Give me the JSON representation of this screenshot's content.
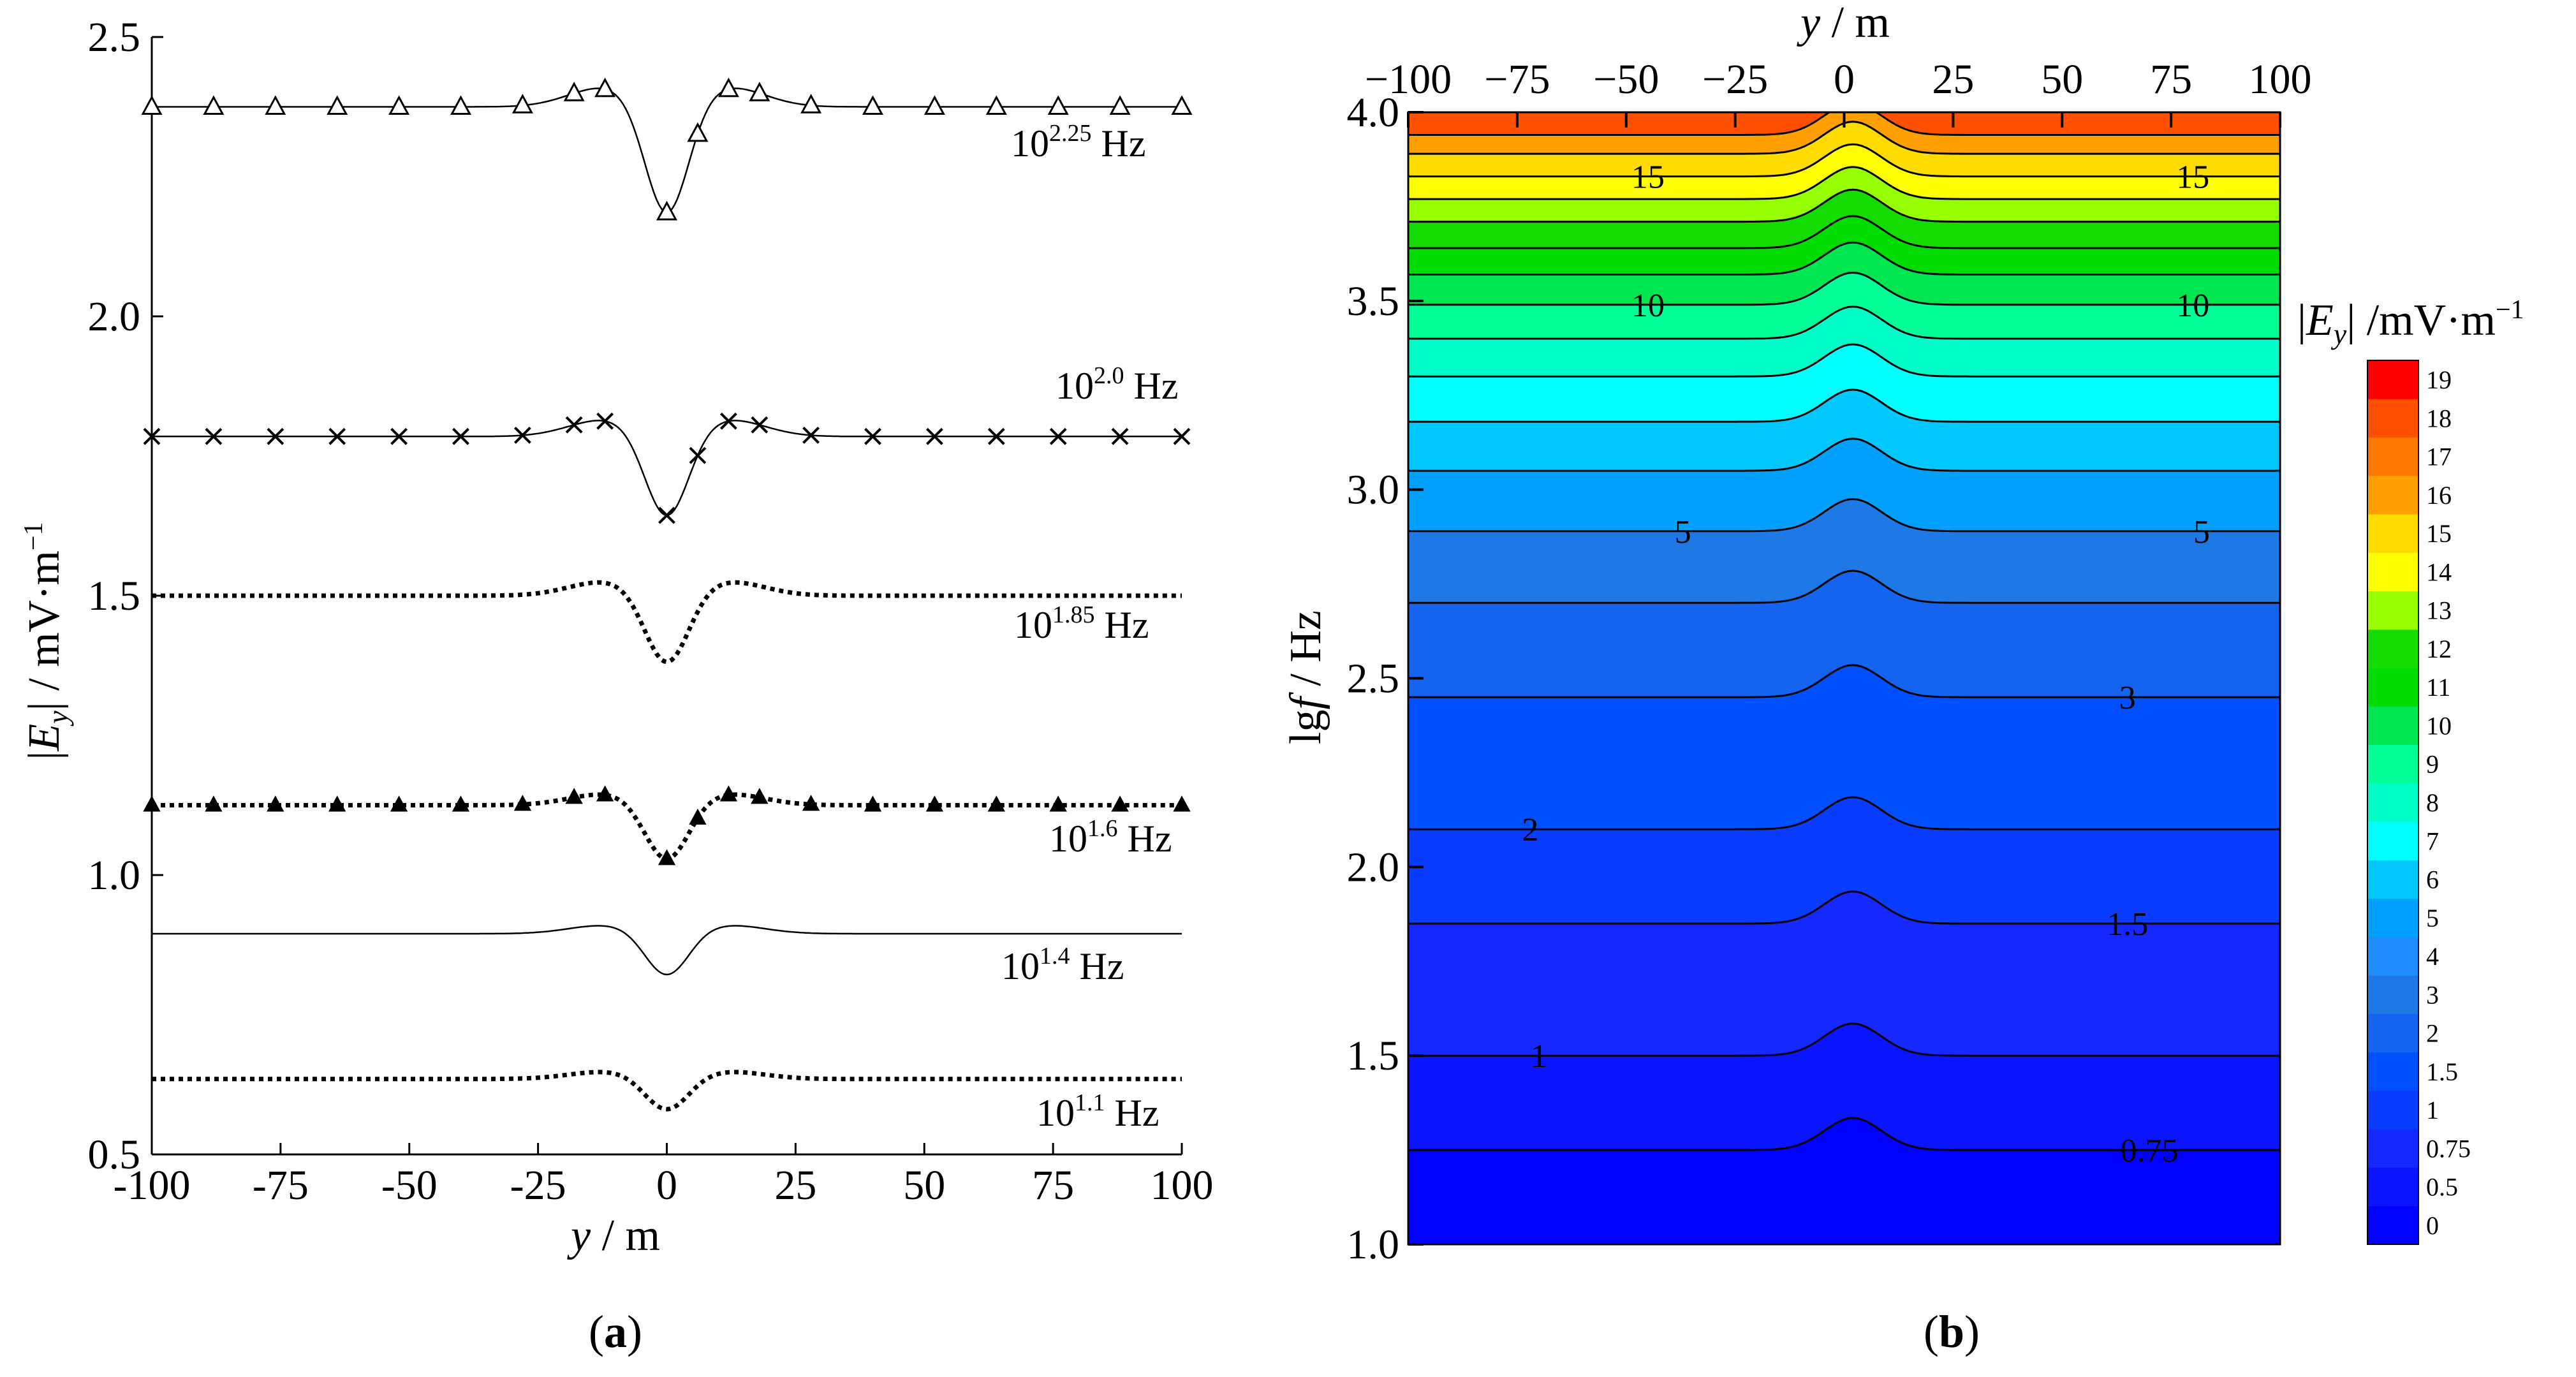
{
  "panel_a": {
    "label_open": "(",
    "label_letter": "a",
    "label_close": ")",
    "ylabel_bar_left": "|",
    "ylabel_E": "E",
    "ylabel_sub": "y",
    "ylabel_rest": "| / mV·m",
    "ylabel_sup": "−1",
    "xlabel_var": "y",
    "xlabel_rest": " / m",
    "series_labels": [
      {
        "base": "10",
        "exp": "2.25",
        "unit": " Hz"
      },
      {
        "base": "10",
        "exp": "2.0",
        "unit": " Hz"
      },
      {
        "base": "10",
        "exp": "1.85",
        "unit": " Hz"
      },
      {
        "base": "10",
        "exp": "1.6",
        "unit": " Hz"
      },
      {
        "base": "10",
        "exp": "1.4",
        "unit": " Hz"
      },
      {
        "base": "10",
        "exp": "1.1",
        "unit": " Hz"
      }
    ]
  },
  "panel_b": {
    "label_open": "(",
    "label_letter": "b",
    "label_close": ")",
    "xlabel_var": "y",
    "xlabel_rest": " / m",
    "ylabel_lg": "lg",
    "ylabel_f": "f",
    "ylabel_rest": " / Hz",
    "cbar_title_bar": "|",
    "cbar_title_E": "E",
    "cbar_title_sub": "y",
    "cbar_title_rest": "| /mV·m",
    "cbar_title_sup": "−1"
  },
  "colors": {
    "line": "#000000",
    "colorbar": [
      "#0000ff",
      "#0a14ff",
      "#1428ff",
      "#0a3cff",
      "#0050ff",
      "#1464f0",
      "#1e78e6",
      "#1e8cff",
      "#00a0ff",
      "#00c8ff",
      "#00ffff",
      "#00ffc8",
      "#00ff96",
      "#00e650",
      "#00dc00",
      "#14dc00",
      "#96ff00",
      "#ffff00",
      "#ffdc00",
      "#ffa000",
      "#ff7800",
      "#ff5000",
      "#ff0000"
    ]
  },
  "chart_data": [
    {
      "type": "line",
      "title": "",
      "xlabel": "y / m",
      "ylabel": "|Ey| / mV·m−1",
      "xlim": [
        -100,
        100
      ],
      "ylim": [
        0.5,
        2.5
      ],
      "x_ticks": [
        -100,
        -75,
        -50,
        -25,
        0,
        25,
        50,
        75,
        100
      ],
      "x_tick_labels": [
        "-100",
        "-75",
        "-50",
        "-25",
        "0",
        "25",
        "50",
        "75",
        "100"
      ],
      "y_ticks": [
        0.5,
        1.0,
        1.5,
        2.0,
        2.5
      ],
      "y_tick_labels": [
        "0.5",
        "1.0",
        "1.5",
        "2.0",
        "2.5"
      ],
      "series": [
        {
          "name": "10^2.25 Hz",
          "style": "solid",
          "marker": "open-triangle",
          "baseline": 2.375,
          "dip_min": 2.17,
          "peak": 2.41,
          "marker_x": [
            -100,
            -88,
            -76,
            -64,
            -52,
            -40,
            -28,
            -18,
            -12,
            0,
            6,
            12,
            18,
            28,
            40,
            52,
            64,
            76,
            88,
            100
          ]
        },
        {
          "name": "10^2.0 Hz",
          "style": "solid",
          "marker": "cross",
          "baseline": 1.785,
          "dip_min": 1.63,
          "peak": 1.815,
          "marker_x": [
            -100,
            -88,
            -76,
            -64,
            -52,
            -40,
            -28,
            -18,
            -12,
            0,
            6,
            12,
            18,
            28,
            40,
            52,
            64,
            76,
            88,
            100
          ]
        },
        {
          "name": "10^1.85 Hz",
          "style": "dotted",
          "marker": "none",
          "baseline": 1.5,
          "dip_min": 1.37,
          "peak": 1.525
        },
        {
          "name": "10^1.6 Hz",
          "style": "dotted",
          "marker": "filled-triangle",
          "baseline": 1.125,
          "dip_min": 1.02,
          "peak": 1.145,
          "marker_x": [
            -100,
            -88,
            -76,
            -64,
            -52,
            -40,
            -28,
            -18,
            -12,
            0,
            6,
            12,
            18,
            28,
            40,
            52,
            64,
            76,
            88,
            100
          ]
        },
        {
          "name": "10^1.4 Hz",
          "style": "solid",
          "marker": "none",
          "baseline": 0.895,
          "dip_min": 0.815,
          "peak": 0.91
        },
        {
          "name": "10^1.1 Hz",
          "style": "dotted",
          "marker": "none",
          "baseline": 0.635,
          "dip_min": 0.575,
          "peak": 0.648
        }
      ]
    },
    {
      "type": "heatmap",
      "title": "",
      "xlabel": "y / m",
      "ylabel": "lg f / Hz",
      "xlim": [
        -100,
        100
      ],
      "ylim": [
        1.0,
        4.0
      ],
      "x_ticks": [
        -100,
        -75,
        -50,
        -25,
        0,
        25,
        50,
        75,
        100
      ],
      "x_tick_labels": [
        "−100",
        "−75",
        "−50",
        "−25",
        "0",
        "25",
        "50",
        "75",
        "100"
      ],
      "y_ticks": [
        1.0,
        1.5,
        2.0,
        2.5,
        3.0,
        3.5,
        4.0
      ],
      "y_tick_labels": [
        "1.0",
        "1.5",
        "2.0",
        "2.5",
        "3.0",
        "3.5",
        "4.0"
      ],
      "colorbar_levels": [
        0,
        0.5,
        0.75,
        1,
        1.5,
        2,
        3,
        4,
        5,
        6,
        7,
        8,
        9,
        10,
        11,
        12,
        13,
        14,
        15,
        16,
        17,
        18,
        19
      ],
      "colorbar_labels": [
        "0",
        "0.5",
        "0.75",
        "1",
        "1.5",
        "2",
        "3",
        "4",
        "5",
        "6",
        "7",
        "8",
        "9",
        "10",
        "11",
        "12",
        "13",
        "14",
        "15",
        "16",
        "17",
        "18",
        "19"
      ],
      "contour_rows": [
        {
          "lgf": 1.25,
          "upper": 1.33,
          "lower": 1.0,
          "level_index": 1
        },
        {
          "lgf": 1.5,
          "upper": 1.575,
          "lower": 1.25,
          "level_index": 2
        },
        {
          "lgf": 1.85,
          "upper": 1.935,
          "lower": 1.5,
          "level_index": 3
        },
        {
          "lgf": 2.1,
          "upper": 2.185,
          "lower": 1.85,
          "level_index": 4
        },
        {
          "lgf": 2.45,
          "upper": 2.535,
          "lower": 2.1,
          "level_index": 5
        },
        {
          "lgf": 2.7,
          "upper": 2.785,
          "lower": 2.45,
          "level_index": 6
        },
        {
          "lgf": 2.89,
          "upper": 2.975,
          "lower": 2.7,
          "level_index": 8
        },
        {
          "lgf": 3.05,
          "upper": 3.135,
          "lower": 2.89,
          "level_index": 9
        },
        {
          "lgf": 3.18,
          "upper": 3.265,
          "lower": 3.05,
          "level_index": 10
        },
        {
          "lgf": 3.3,
          "upper": 3.385,
          "lower": 3.18,
          "level_index": 11
        },
        {
          "lgf": 3.4,
          "upper": 3.485,
          "lower": 3.3,
          "level_index": 12
        },
        {
          "lgf": 3.49,
          "upper": 3.575,
          "lower": 3.4,
          "level_index": 13
        },
        {
          "lgf": 3.57,
          "upper": 3.655,
          "lower": 3.49,
          "level_index": 14
        },
        {
          "lgf": 3.64,
          "upper": 3.725,
          "lower": 3.57,
          "level_index": 15
        },
        {
          "lgf": 3.71,
          "upper": 3.795,
          "lower": 3.64,
          "level_index": 16
        },
        {
          "lgf": 3.77,
          "upper": 3.855,
          "lower": 3.71,
          "level_index": 17
        },
        {
          "lgf": 3.83,
          "upper": 3.915,
          "lower": 3.77,
          "level_index": 18
        },
        {
          "lgf": 3.89,
          "upper": 3.975,
          "lower": 3.83,
          "level_index": 19
        },
        {
          "lgf": 3.94,
          "upper": 4.0,
          "lower": 3.89,
          "level_index": 20
        }
      ],
      "top_band_level_index": 21,
      "contour_labels": [
        {
          "text": "0.75",
          "y": 70,
          "lgf": 1.25
        },
        {
          "text": "1",
          "y": -70,
          "lgf": 1.5
        },
        {
          "text": "1.5",
          "y": 65,
          "lgf": 1.85
        },
        {
          "text": "2",
          "y": -72,
          "lgf": 2.1
        },
        {
          "text": "3",
          "y": 65,
          "lgf": 2.45
        },
        {
          "text": "5",
          "y": -37,
          "lgf": 2.89
        },
        {
          "text": "5",
          "y": 82,
          "lgf": 2.89
        },
        {
          "text": "10",
          "y": -45,
          "lgf": 3.49
        },
        {
          "text": "10",
          "y": 80,
          "lgf": 3.49
        },
        {
          "text": "15",
          "y": -45,
          "lgf": 3.83
        },
        {
          "text": "15",
          "y": 80,
          "lgf": 3.83
        }
      ]
    }
  ]
}
